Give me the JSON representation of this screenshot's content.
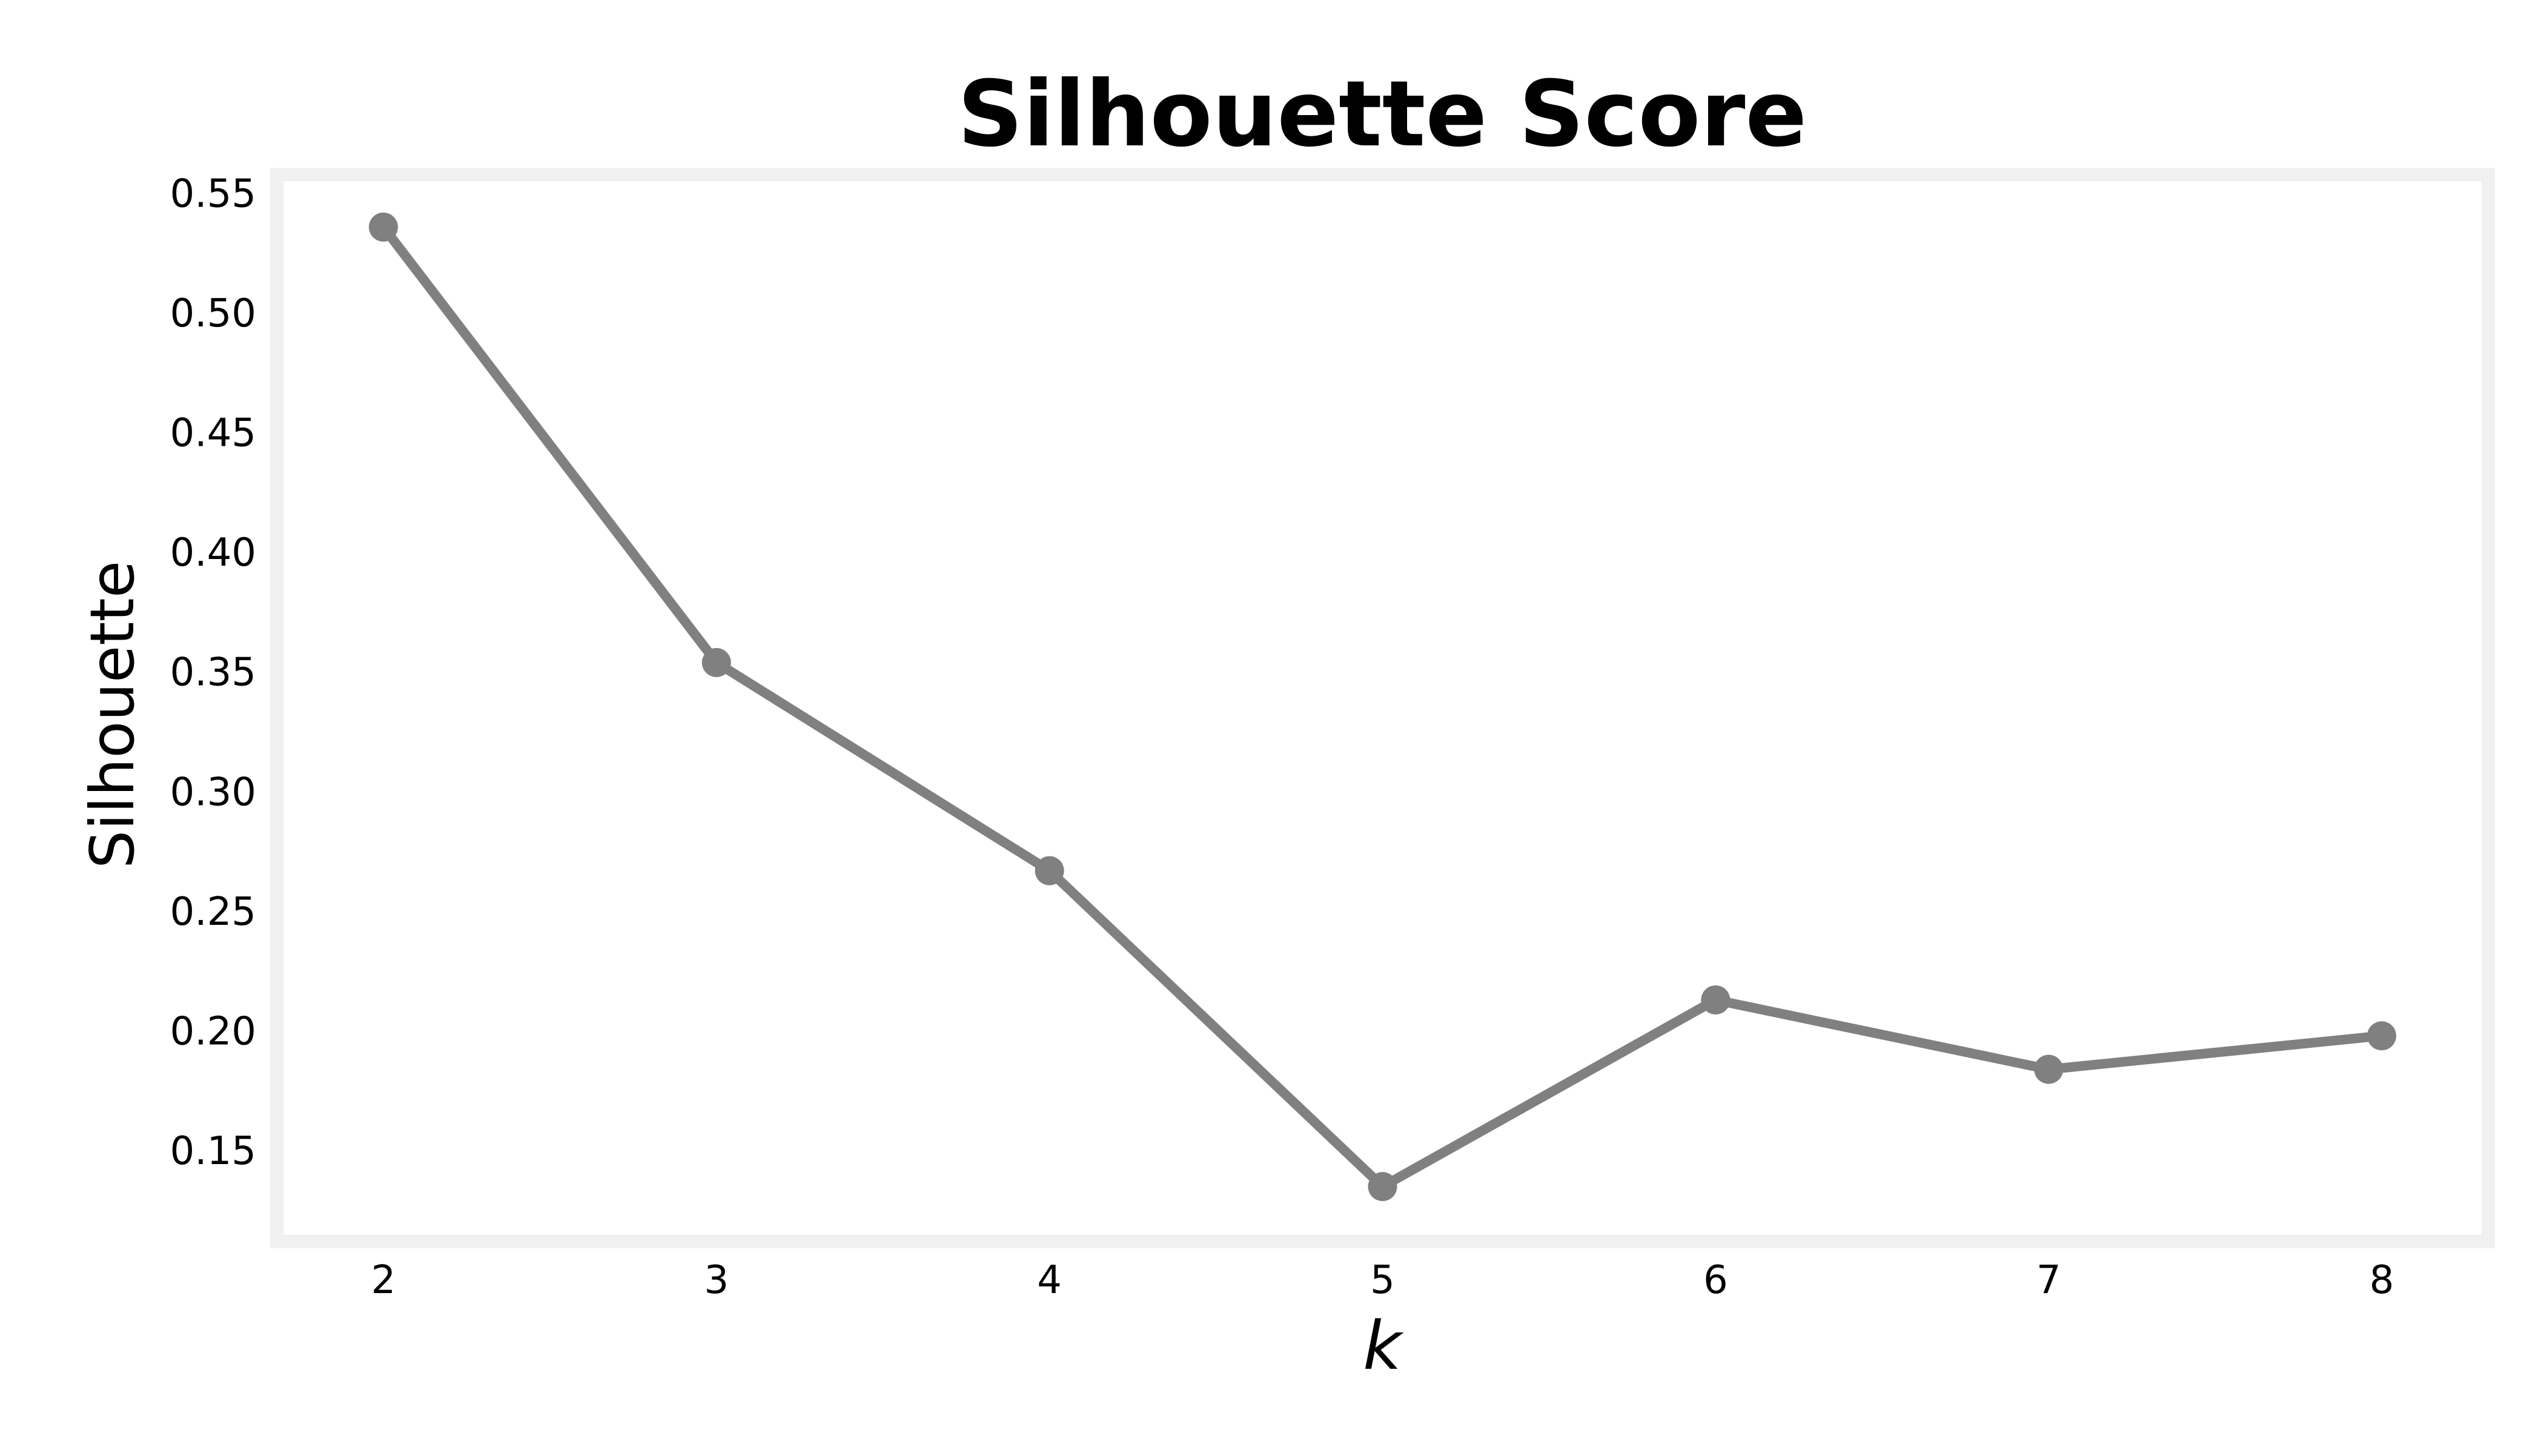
{
  "chart_data": {
    "type": "line",
    "title": "Silhouette Score",
    "xlabel": "k",
    "ylabel": "Silhouette",
    "x": [
      2,
      3,
      4,
      5,
      6,
      7,
      8
    ],
    "series": [
      {
        "values": [
          0.536,
          0.354,
          0.267,
          0.135,
          0.213,
          0.184,
          0.198
        ]
      }
    ],
    "xlim": [
      1.68,
      8.32
    ],
    "ylim": [
      0.112,
      0.558
    ],
    "xticks": [
      "2",
      "3",
      "4",
      "5",
      "6",
      "7",
      "8"
    ],
    "yticks": [
      "0.15",
      "0.20",
      "0.25",
      "0.30",
      "0.35",
      "0.40",
      "0.45",
      "0.50",
      "0.55"
    ],
    "grid": false,
    "legend": "none",
    "colors": {
      "line": "#808080",
      "marker": "#808080",
      "frame": "#f0f0f0",
      "background": "#ffffff"
    }
  }
}
